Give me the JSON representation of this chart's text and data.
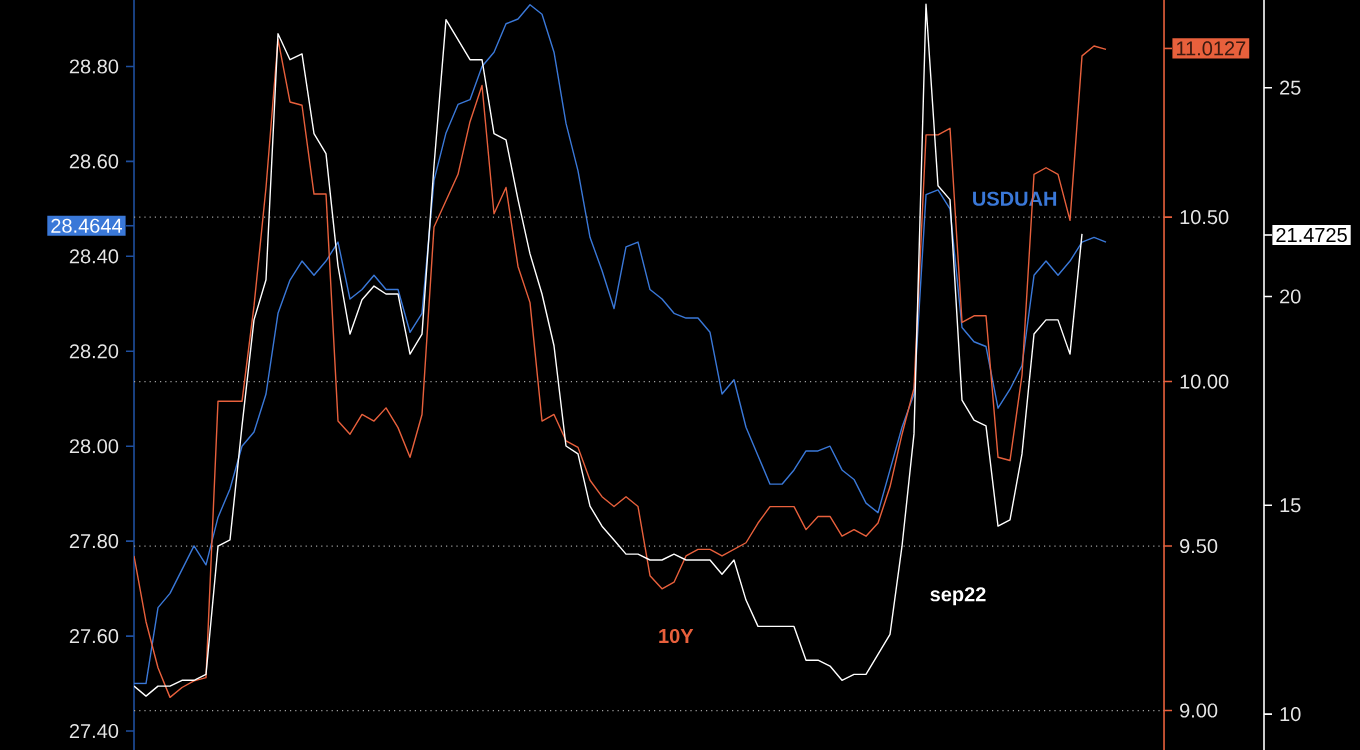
{
  "chart_data": {
    "type": "line",
    "categories": [
      null,
      null,
      null,
      null,
      null,
      null,
      null,
      null,
      null,
      null,
      null,
      null,
      null,
      null,
      null,
      null,
      null,
      null,
      null,
      null,
      null,
      null,
      null,
      null,
      null,
      null,
      null,
      null,
      null,
      null,
      null,
      null,
      null,
      null,
      null,
      null,
      null,
      null,
      null,
      null,
      null,
      null,
      null,
      null,
      null,
      null,
      null,
      null,
      null,
      null,
      null,
      null,
      null,
      null,
      null,
      null,
      null,
      null,
      null,
      null,
      null,
      null,
      null,
      null,
      null,
      null,
      null,
      null,
      null,
      null,
      null,
      null,
      null,
      null,
      null,
      null,
      null,
      null,
      null,
      null,
      null,
      null
    ],
    "series": [
      {
        "name": "USDUAH",
        "color": "#3a78d8",
        "values": [
          27.5,
          27.5,
          27.66,
          27.69,
          27.74,
          27.79,
          27.75,
          27.85,
          27.91,
          28.0,
          28.03,
          28.11,
          28.28,
          28.35,
          28.39,
          28.36,
          28.39,
          28.43,
          28.31,
          28.33,
          28.36,
          28.33,
          28.33,
          28.24,
          28.28,
          28.56,
          28.66,
          28.72,
          28.73,
          28.8,
          28.83,
          28.89,
          28.9,
          28.93,
          28.91,
          28.83,
          28.68,
          28.58,
          28.44,
          28.37,
          28.29,
          28.42,
          28.43,
          28.33,
          28.31,
          28.28,
          28.27,
          28.27,
          28.24,
          28.11,
          28.14,
          28.04,
          27.98,
          27.92,
          27.92,
          27.95,
          27.99,
          27.99,
          28.0,
          27.95,
          27.93,
          27.88,
          27.86,
          27.95,
          28.04,
          28.11,
          28.53,
          28.54,
          28.5,
          28.25,
          28.22,
          28.21,
          28.08,
          28.12,
          28.17,
          28.36,
          28.39,
          28.36,
          28.39,
          28.43,
          28.44,
          28.43
        ]
      },
      {
        "name": "10Y",
        "color": "#e8603c",
        "axis": "y2",
        "values": [
          9.47,
          9.27,
          9.13,
          9.04,
          9.07,
          9.09,
          9.1,
          9.94,
          9.94,
          9.94,
          10.23,
          10.59,
          11.04,
          10.85,
          10.84,
          10.57,
          10.57,
          9.88,
          9.84,
          9.9,
          9.88,
          9.92,
          9.86,
          9.77,
          9.9,
          10.47,
          10.55,
          10.63,
          10.79,
          10.9,
          10.51,
          10.59,
          10.35,
          10.24,
          9.88,
          9.9,
          9.82,
          9.8,
          9.7,
          9.65,
          9.62,
          9.65,
          9.62,
          9.41,
          9.37,
          9.39,
          9.47,
          9.49,
          9.49,
          9.47,
          9.49,
          9.51,
          9.57,
          9.62,
          9.62,
          9.62,
          9.55,
          9.59,
          9.59,
          9.53,
          9.55,
          9.53,
          9.57,
          9.68,
          9.84,
          9.98,
          10.75,
          10.75,
          10.77,
          10.18,
          10.2,
          10.2,
          9.77,
          9.76,
          10.02,
          10.63,
          10.65,
          10.63,
          10.49,
          10.99,
          11.02,
          11.01
        ]
      },
      {
        "name": "sep22",
        "color": "#ffffff",
        "axis": "y3",
        "values": [
          10.67,
          10.43,
          10.67,
          10.67,
          10.81,
          10.81,
          10.95,
          14.02,
          14.17,
          16.9,
          19.44,
          20.4,
          26.29,
          25.67,
          25.81,
          23.9,
          23.42,
          20.73,
          19.1,
          19.92,
          20.25,
          20.06,
          20.06,
          18.62,
          19.1,
          23.13,
          26.63,
          26.15,
          25.67,
          25.67,
          23.9,
          23.75,
          22.32,
          21.02,
          20.06,
          18.82,
          16.42,
          16.23,
          14.98,
          14.5,
          14.17,
          13.83,
          13.83,
          13.69,
          13.69,
          13.83,
          13.69,
          13.69,
          13.69,
          13.35,
          13.69,
          12.73,
          12.1,
          12.1,
          12.1,
          12.1,
          11.29,
          11.29,
          11.15,
          10.81,
          10.95,
          10.95,
          11.43,
          11.91,
          14.02,
          16.71,
          27.0,
          22.65,
          22.32,
          17.52,
          17.04,
          16.9,
          14.5,
          14.65,
          16.23,
          19.1,
          19.44,
          19.44,
          18.62,
          21.5,
          null,
          null
        ]
      }
    ],
    "ylim": [
      27.36,
      28.94
    ],
    "yticks": [
      {
        "value": 27.4,
        "label": "27.40"
      },
      {
        "value": 27.6,
        "label": "27.60"
      },
      {
        "value": 27.8,
        "label": "27.80"
      },
      {
        "value": 28.0,
        "label": "28.00"
      },
      {
        "value": 28.2,
        "label": "28.20"
      },
      {
        "value": 28.4,
        "label": "28.40"
      },
      {
        "value": 28.6,
        "label": "28.60"
      },
      {
        "value": 28.8,
        "label": "28.80"
      },
      {
        "value": 28.4644,
        "label": "28.4644"
      }
    ],
    "y2lim": [
      8.88,
      11.16
    ],
    "y2ticks": [
      {
        "value": 9.0,
        "label": "9.00"
      },
      {
        "value": 9.5,
        "label": "9.50"
      },
      {
        "value": 10.0,
        "label": "10.00"
      },
      {
        "value": 10.5,
        "label": "10.50"
      },
      {
        "value": 11.0127,
        "label": "11.0127"
      }
    ],
    "y3lim": [
      9.14,
      27.1
    ],
    "y3ticks": [
      {
        "value": 10,
        "label": "10"
      },
      {
        "value": 15,
        "label": "15"
      },
      {
        "value": 20,
        "label": "20"
      },
      {
        "value": 25,
        "label": "25"
      },
      {
        "value": 21.4725,
        "label": "21.4725"
      }
    ],
    "grid": true,
    "tick_labels": "y"
  }
}
